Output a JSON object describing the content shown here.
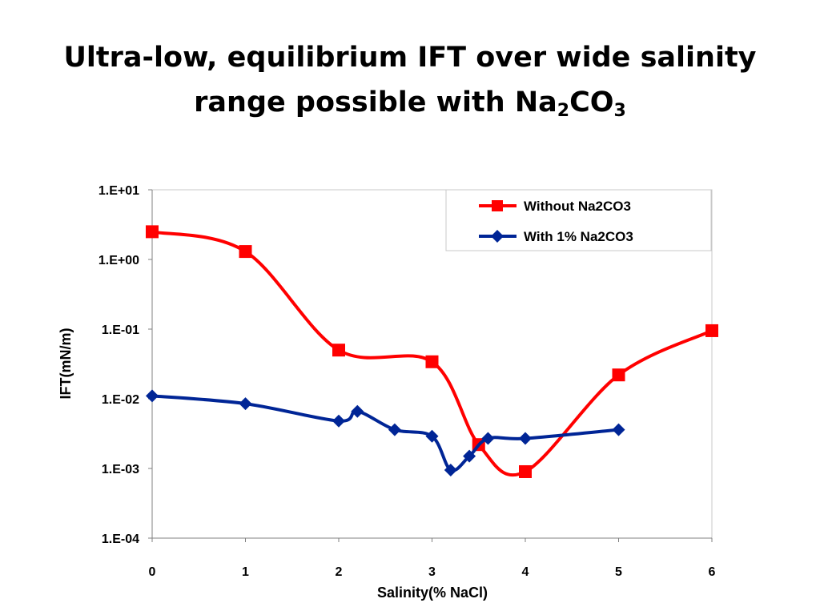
{
  "title": {
    "line1": "Ultra-low, equilibrium IFT over wide salinity",
    "line2_prefix": "range possible with Na",
    "sub1": "2",
    "line2_mid": "CO",
    "sub2": "3"
  },
  "chart_data": {
    "type": "line",
    "xlabel": "Salinity(% NaCl)",
    "ylabel": "IFT(mN/m)",
    "xlim": [
      0,
      6
    ],
    "ylim": [
      0.0001,
      10
    ],
    "yscale": "log",
    "x_ticks": [
      "0",
      "1",
      "2",
      "3",
      "4",
      "5",
      "6"
    ],
    "y_ticks": [
      "1.E-04",
      "1.E-03",
      "1.E-02",
      "1.E-01",
      "1.E+00",
      "1.E+01"
    ],
    "grid": false,
    "legend_position": "top-right",
    "series": [
      {
        "name": "Without Na2CO3",
        "color": "#ff0000",
        "marker": "square",
        "smooth": true,
        "x": [
          0,
          1,
          2,
          3,
          3.5,
          4,
          5,
          6
        ],
        "y": [
          2.5,
          1.3,
          0.05,
          0.034,
          0.0022,
          0.0009,
          0.022,
          0.095
        ]
      },
      {
        "name": "With 1% Na2CO3",
        "color": "#002596",
        "marker": "diamond",
        "smooth": true,
        "x": [
          0,
          1,
          2,
          2.2,
          2.6,
          3,
          3.2,
          3.4,
          3.6,
          4,
          5
        ],
        "y": [
          0.011,
          0.0085,
          0.0048,
          0.0066,
          0.0036,
          0.0029,
          0.00095,
          0.0015,
          0.0027,
          0.0027,
          0.0036
        ]
      }
    ]
  }
}
